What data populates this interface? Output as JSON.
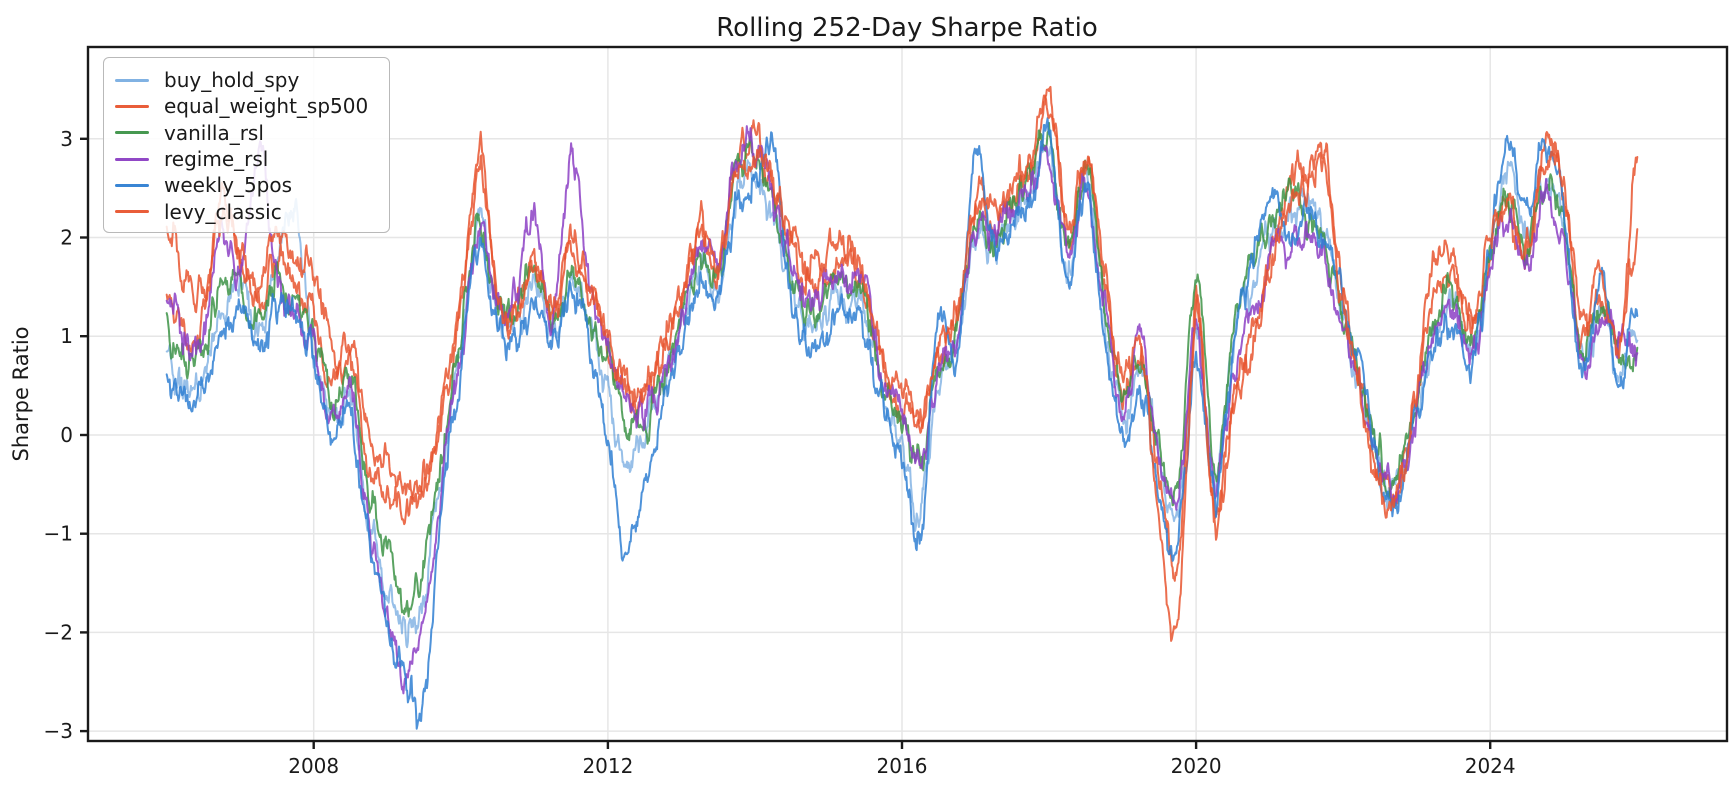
{
  "figure": {
    "background": "#ffffff",
    "grid_color": "#e6e6e6",
    "spine_color": "#1a1a1a",
    "text_color": "#1a1a1a"
  },
  "chart_data": {
    "type": "line",
    "title": "Rolling 252-Day Sharpe Ratio",
    "xlabel": "",
    "ylabel": "Sharpe Ratio",
    "grid": true,
    "legend_position": "upper left",
    "xlim": [
      2004.93,
      2027.22
    ],
    "ylim": [
      -3.1,
      3.93
    ],
    "x_ticks": [
      2008,
      2012,
      2016,
      2020,
      2024
    ],
    "x_tick_labels": [
      "2008",
      "2012",
      "2016",
      "2020",
      "2024"
    ],
    "y_ticks": [
      -3,
      -2,
      -1,
      0,
      1,
      2,
      3
    ],
    "y_tick_labels": [
      "−3",
      "−2",
      "−1",
      "0",
      "1",
      "2",
      "3"
    ],
    "x_start": 2006.0,
    "x_step": 0.25,
    "jitter": 0.17,
    "series": [
      {
        "name": "buy_hold_spy",
        "color": "#2f7fd2",
        "alpha": 0.5,
        "values": [
          0.7,
          0.5,
          0.6,
          1.2,
          1.5,
          1.0,
          1.8,
          2.2,
          0.9,
          0.2,
          0.3,
          -0.8,
          -1.5,
          -2.0,
          -1.6,
          -0.3,
          0.9,
          2.1,
          1.2,
          1.1,
          1.6,
          1.0,
          1.5,
          1.1,
          0.4,
          -0.3,
          0.0,
          0.5,
          1.1,
          1.7,
          1.5,
          2.4,
          2.7,
          2.2,
          1.5,
          1.1,
          1.3,
          1.4,
          1.2,
          0.4,
          -0.1,
          -0.7,
          0.6,
          0.9,
          2.1,
          1.9,
          2.2,
          2.5,
          2.9,
          1.7,
          2.6,
          1.2,
          0.2,
          0.6,
          -0.2,
          -0.8,
          0.9,
          -0.4,
          0.9,
          1.5,
          2.0,
          2.2,
          2.4,
          2.0,
          1.2,
          0.4,
          -0.3,
          -0.55,
          0.3,
          1.0,
          1.3,
          0.8,
          1.7,
          2.7,
          2.0,
          2.6,
          2.1,
          0.8,
          1.2,
          0.7,
          1.0
        ]
      },
      {
        "name": "equal_weight_sp500",
        "color": "#e8552f",
        "alpha": 0.85,
        "values": [
          1.4,
          1.0,
          1.2,
          2.4,
          1.7,
          1.3,
          1.8,
          1.5,
          1.2,
          0.5,
          0.7,
          -0.3,
          -0.6,
          -0.75,
          -0.5,
          0.2,
          1.3,
          2.85,
          1.4,
          1.3,
          1.9,
          1.3,
          1.8,
          1.4,
          0.9,
          0.4,
          0.3,
          0.8,
          1.3,
          2.1,
          1.7,
          2.8,
          3.0,
          2.4,
          1.9,
          1.5,
          1.7,
          1.8,
          1.5,
          0.6,
          0.3,
          0.1,
          0.8,
          1.1,
          2.4,
          2.1,
          2.4,
          2.7,
          3.5,
          2.0,
          2.8,
          1.6,
          0.4,
          0.8,
          -0.4,
          -1.4,
          1.3,
          -0.8,
          0.4,
          1.0,
          1.8,
          2.6,
          2.7,
          2.9,
          1.4,
          0.5,
          -0.4,
          -0.5,
          0.4,
          1.4,
          1.6,
          1.0,
          1.9,
          2.3,
          1.8,
          3.0,
          2.4,
          1.0,
          1.5,
          1.0,
          2.0
        ]
      },
      {
        "name": "vanilla_rsl",
        "color": "#3d9347",
        "alpha": 0.85,
        "values": [
          1.1,
          0.8,
          0.9,
          1.5,
          1.5,
          1.1,
          1.6,
          1.3,
          1.0,
          0.3,
          0.5,
          -0.6,
          -1.2,
          -1.75,
          -1.3,
          -0.1,
          1.0,
          2.1,
          1.3,
          1.2,
          1.7,
          1.1,
          1.6,
          1.2,
          0.7,
          0.2,
          0.1,
          0.6,
          1.2,
          1.8,
          1.6,
          2.7,
          2.9,
          2.3,
          1.6,
          1.2,
          1.5,
          1.5,
          1.3,
          0.5,
          0.1,
          -0.2,
          0.6,
          1.0,
          2.2,
          2.0,
          2.3,
          2.6,
          3.0,
          1.8,
          2.7,
          1.4,
          0.3,
          0.7,
          -0.1,
          -0.5,
          1.6,
          -0.3,
          1.1,
          1.8,
          2.2,
          2.5,
          2.2,
          1.9,
          1.2,
          0.5,
          -0.2,
          -0.45,
          0.4,
          1.1,
          1.5,
          0.9,
          1.8,
          2.3,
          1.9,
          2.6,
          2.2,
          0.9,
          1.3,
          0.8,
          0.9
        ]
      },
      {
        "name": "regime_rsl",
        "color": "#8c3fc4",
        "alpha": 0.85,
        "values": [
          1.5,
          0.9,
          1.0,
          2.0,
          1.6,
          2.9,
          1.6,
          1.2,
          0.9,
          0.1,
          0.4,
          -1.0,
          -1.8,
          -2.45,
          -1.9,
          -0.4,
          0.8,
          2.0,
          1.3,
          1.4,
          2.2,
          1.1,
          2.7,
          1.6,
          0.8,
          0.3,
          0.2,
          0.6,
          1.2,
          1.9,
          1.7,
          2.8,
          2.9,
          2.4,
          1.7,
          1.3,
          1.6,
          1.6,
          1.7,
          0.5,
          0.2,
          -0.3,
          0.6,
          1.1,
          2.0,
          2.1,
          2.2,
          2.5,
          2.8,
          1.8,
          2.5,
          1.3,
          0.2,
          1.0,
          -0.2,
          -0.6,
          1.1,
          -0.5,
          0.5,
          1.2,
          1.7,
          1.9,
          2.0,
          1.8,
          1.1,
          0.4,
          -0.3,
          -0.5,
          0.3,
          1.0,
          1.4,
          0.8,
          1.6,
          2.2,
          1.8,
          2.4,
          2.0,
          0.8,
          1.1,
          0.9,
          0.8
        ]
      },
      {
        "name": "weekly_5pos",
        "color": "#2f7fd2",
        "alpha": 0.85,
        "values": [
          0.5,
          0.4,
          0.5,
          1.0,
          1.3,
          0.9,
          1.4,
          1.1,
          0.8,
          0.0,
          0.2,
          -1.1,
          -1.9,
          -2.45,
          -2.8,
          -0.6,
          0.7,
          1.9,
          1.1,
          1.0,
          1.3,
          0.9,
          1.4,
          0.9,
          -0.1,
          -1.15,
          -0.5,
          0.3,
          1.0,
          1.6,
          1.4,
          2.3,
          2.6,
          2.85,
          1.3,
          0.8,
          1.1,
          1.2,
          1.0,
          0.2,
          -0.4,
          -1.05,
          1.2,
          0.8,
          2.9,
          1.8,
          2.1,
          2.4,
          3.0,
          1.6,
          2.5,
          1.1,
          0.0,
          0.4,
          -0.6,
          -1.15,
          0.7,
          -0.6,
          0.8,
          1.7,
          2.4,
          2.0,
          2.3,
          1.9,
          1.4,
          0.6,
          -0.4,
          -0.7,
          0.2,
          0.9,
          1.2,
          0.7,
          1.9,
          2.95,
          2.2,
          2.9,
          2.3,
          0.7,
          1.55,
          0.6,
          1.5
        ]
      },
      {
        "name": "levy_classic",
        "color": "#e8552f",
        "alpha": 0.85,
        "values": [
          2.2,
          1.6,
          1.4,
          2.2,
          1.9,
          1.5,
          2.0,
          1.7,
          1.8,
          0.8,
          1.0,
          0.1,
          -0.3,
          -0.5,
          -0.45,
          0.4,
          1.4,
          2.6,
          1.5,
          1.2,
          1.7,
          1.2,
          1.9,
          1.5,
          1.0,
          0.5,
          0.4,
          0.9,
          1.4,
          2.0,
          1.8,
          2.6,
          2.8,
          2.5,
          2.0,
          1.7,
          1.9,
          1.9,
          1.6,
          0.8,
          0.5,
          0.2,
          0.9,
          1.3,
          2.2,
          2.3,
          2.5,
          2.8,
          3.3,
          2.1,
          2.9,
          1.7,
          0.5,
          0.9,
          -0.9,
          -1.85,
          1.2,
          -0.9,
          0.3,
          0.8,
          1.6,
          2.3,
          2.5,
          2.6,
          1.3,
          0.3,
          -0.5,
          -0.6,
          0.5,
          1.9,
          1.7,
          1.1,
          2.0,
          2.4,
          1.9,
          2.8,
          2.5,
          1.1,
          1.7,
          0.9,
          2.85
        ]
      }
    ]
  }
}
